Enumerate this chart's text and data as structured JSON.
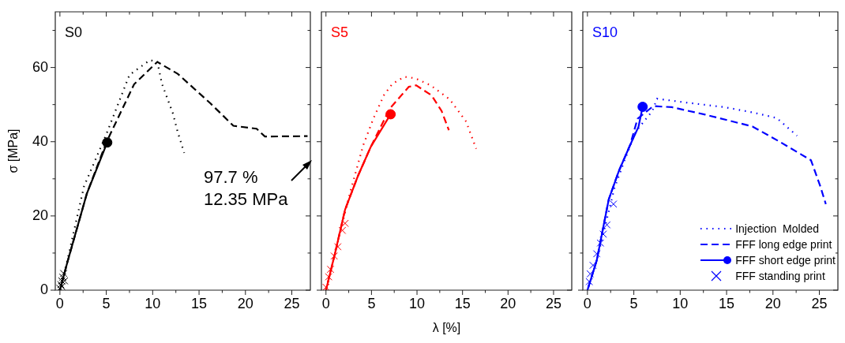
{
  "chart_data": [
    {
      "type": "line",
      "title": "S0",
      "ylabel": "σ [MPa]",
      "xlim": [
        -0.5,
        27
      ],
      "ylim": [
        0,
        75
      ],
      "tick_labels": "xy",
      "xticks": [
        0,
        {
          "value": 2.5,
          "label": null
        },
        5,
        {
          "value": 7.5,
          "label": null
        },
        10,
        {
          "value": 12.5,
          "label": null
        },
        15,
        {
          "value": 17.5,
          "label": null
        },
        20,
        {
          "value": 22.5,
          "label": null
        },
        25
      ],
      "yticks": [
        0,
        {
          "value": 10,
          "label": null
        },
        20,
        {
          "value": 30,
          "label": null
        },
        40,
        {
          "value": 50,
          "label": null
        },
        60,
        {
          "value": 70,
          "label": null
        }
      ],
      "annotations": [
        "97.7 %\n12.35 MPa"
      ],
      "series": [
        {
          "type": "line",
          "color": "#000000",
          "line_style": "dotted",
          "marker": "none",
          "x": [
            0,
            0.8,
            2.6,
            5,
            7.5,
            9.7,
            10.5,
            11,
            12.2,
            12.7,
            13.4
          ],
          "values": [
            0,
            8,
            28,
            42,
            58,
            62,
            61.5,
            55.6,
            47.5,
            42.6,
            37
          ]
        },
        {
          "type": "line",
          "color": "#000000",
          "line_style": "dashed",
          "marker": "none",
          "x": [
            0,
            0.8,
            2.9,
            5,
            8,
            10.5,
            12.7,
            16.2,
            18.7,
            21.2,
            22.1,
            26.7
          ],
          "values": [
            0,
            7.5,
            26,
            39.8,
            55.5,
            61.5,
            58.3,
            50.4,
            44.3,
            43.5,
            41.4,
            41.5
          ]
        },
        {
          "type": "line",
          "color": "#000000",
          "line_style": "solid",
          "marker": "none",
          "x": [
            0,
            0.8,
            2.9,
            5.1
          ],
          "values": [
            0,
            7.5,
            26,
            39.8
          ]
        },
        {
          "type": "scatter",
          "color": "#000000",
          "marker": "circle",
          "x": [
            5.1
          ],
          "values": [
            39.8
          ]
        },
        {
          "type": "scatter",
          "color": "#000000",
          "marker": "cross",
          "x": [
            0,
            0.1,
            0.2,
            0.3,
            0.4,
            0.2,
            0.5
          ],
          "values": [
            0.5,
            1.5,
            2.5,
            3.5,
            4.5,
            1,
            2.5
          ]
        }
      ]
    },
    {
      "type": "line",
      "title": "S5",
      "xlabel": "λ [%]",
      "xlim": [
        -0.5,
        27
      ],
      "ylim": [
        0,
        75
      ],
      "tick_labels": "x",
      "xticks": [
        0,
        {
          "value": 2.5,
          "label": null
        },
        5,
        {
          "value": 7.5,
          "label": null
        },
        10,
        {
          "value": 12.5,
          "label": null
        },
        15,
        {
          "value": 17.5,
          "label": null
        },
        20,
        {
          "value": 22.5,
          "label": null
        },
        25
      ],
      "yticks": [
        0,
        {
          "value": 10,
          "label": null
        },
        20,
        {
          "value": 30,
          "label": null
        },
        40,
        {
          "value": 50,
          "label": null
        },
        60,
        {
          "value": 70,
          "label": null
        }
      ],
      "series": [
        {
          "type": "line",
          "color": "#ff0000",
          "line_style": "dotted",
          "marker": "none",
          "x": [
            0,
            1,
            2.6,
            4.1,
            5.2,
            6.4,
            7.3,
            8.6,
            9.8,
            11.5,
            13.6,
            15.4,
            16.5
          ],
          "values": [
            0,
            10,
            25.9,
            39.1,
            46.2,
            52.7,
            55.6,
            57.5,
            57.1,
            55.2,
            51.4,
            45.4,
            38.1
          ]
        },
        {
          "type": "line",
          "color": "#ff0000",
          "line_style": "dashed",
          "marker": "none",
          "x": [
            0,
            1,
            2.1,
            3.5,
            4.9,
            7,
            9.1,
            9.9,
            11.6,
            12.7,
            13.5
          ],
          "values": [
            0,
            10,
            21.7,
            30.7,
            38.5,
            48.9,
            54.8,
            55.2,
            52.5,
            48.3,
            43.1
          ]
        },
        {
          "type": "line",
          "color": "#ff0000",
          "line_style": "solid",
          "marker": "none",
          "x": [
            0,
            1,
            2.1,
            3.5,
            4.9,
            7.1
          ],
          "values": [
            0,
            10,
            21.7,
            30.7,
            38.5,
            47.4
          ]
        },
        {
          "type": "scatter",
          "color": "#ff0000",
          "marker": "circle",
          "x": [
            7.1
          ],
          "values": [
            47.4
          ]
        },
        {
          "type": "scatter",
          "color": "#ff0000",
          "marker": "cross",
          "x": [
            0,
            0.3,
            0.5,
            0.9,
            1.3,
            1.8,
            2.1
          ],
          "values": [
            0.8,
            3.6,
            5.6,
            9.2,
            11.7,
            16.1,
            18
          ]
        }
      ]
    },
    {
      "type": "line",
      "title": "S10",
      "xlim": [
        -0.5,
        27
      ],
      "ylim": [
        0,
        75
      ],
      "tick_labels": "x",
      "legend": "bottom right",
      "xticks": [
        0,
        {
          "value": 2.5,
          "label": null
        },
        5,
        {
          "value": 7.5,
          "label": null
        },
        10,
        {
          "value": 12.5,
          "label": null
        },
        15,
        {
          "value": 17.5,
          "label": null
        },
        20,
        {
          "value": 22.5,
          "label": null
        },
        25
      ],
      "yticks": [
        0,
        {
          "value": 10,
          "label": null
        },
        20,
        {
          "value": 30,
          "label": null
        },
        40,
        {
          "value": 50,
          "label": null
        },
        60,
        {
          "value": 70,
          "label": null
        }
      ],
      "series": [
        {
          "type": "line",
          "name": "Injection  Molded",
          "color": "#0000ff",
          "line_style": "dotted",
          "marker": "none",
          "x": [
            0,
            1,
            2.9,
            4,
            5.2,
            7,
            7.5,
            10.5,
            14.8,
            17.8,
            20.4,
            22.6
          ],
          "values": [
            0,
            8,
            27.4,
            35,
            42.7,
            48.3,
            51.6,
            50.6,
            49.3,
            47.9,
            46.4,
            41.6
          ]
        },
        {
          "type": "line",
          "name": "FFF long edge print",
          "color": "#0000ff",
          "line_style": "dashed",
          "marker": "none",
          "x": [
            0,
            1,
            2.3,
            3.4,
            4.6,
            5.4,
            7.1,
            9.1,
            12.7,
            17.8,
            20.8,
            24.1,
            25.1,
            25.7
          ],
          "values": [
            0,
            8,
            24.5,
            32.2,
            39.1,
            46.2,
            49.6,
            49.3,
            47.3,
            44.1,
            39.9,
            35,
            28,
            23.2
          ]
        },
        {
          "type": "line",
          "name": "FFF short edge print",
          "color": "#0000ff",
          "line_style": "solid",
          "marker": "none",
          "x": [
            0,
            1,
            2.3,
            3.4,
            4.6,
            5.5,
            5.95
          ],
          "values": [
            0,
            8,
            24.5,
            32.2,
            39.1,
            44,
            49.4
          ]
        },
        {
          "type": "scatter",
          "color": "#0000ff",
          "marker": "circle",
          "x": [
            5.95
          ],
          "values": [
            49.4
          ]
        },
        {
          "type": "scatter",
          "name": "FFF standing print",
          "color": "#0000ff",
          "marker": "cross",
          "x": [
            0.2,
            0.3,
            0.6,
            1,
            1.4,
            1.7,
            2.1,
            2.8
          ],
          "values": [
            2.3,
            4.4,
            6.7,
            9.8,
            12.7,
            15.1,
            17.6,
            23.2
          ]
        }
      ]
    }
  ]
}
